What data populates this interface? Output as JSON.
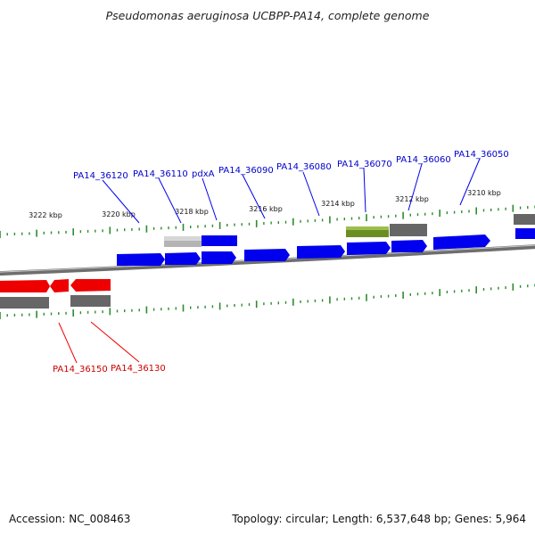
{
  "header": {
    "title": "Pseudomonas aeruginosa UCBPP-PA14, complete genome"
  },
  "footer": {
    "accession": "Accession: NC_008463",
    "summary": "Topology: circular; Length: 6,537,648 bp; Genes: 5,964"
  },
  "colors": {
    "forward_gene": "#0000ee",
    "reverse_gene": "#ee0000",
    "orf_track": "#666666",
    "orf_track_light": "#bbbbbb",
    "rna_feature": "#6b8e23",
    "backbone": "#777777",
    "tick": "#2e8b2e",
    "top_label": "#0000cc",
    "bottom_label": "#cc0000"
  },
  "kbp_labels": [
    "3222 kbp",
    "3220 kbp",
    "3218 kbp",
    "3216 kbp",
    "3214 kbp",
    "3212 kbp",
    "3210 kbp"
  ],
  "forward_gene_labels": [
    "PA14_36120",
    "PA14_36110",
    "pdxA",
    "PA14_36090",
    "PA14_36080",
    "PA14_36070",
    "PA14_36060",
    "PA14_36050"
  ],
  "reverse_gene_labels": [
    "PA14_36150",
    "PA14_36130"
  ]
}
